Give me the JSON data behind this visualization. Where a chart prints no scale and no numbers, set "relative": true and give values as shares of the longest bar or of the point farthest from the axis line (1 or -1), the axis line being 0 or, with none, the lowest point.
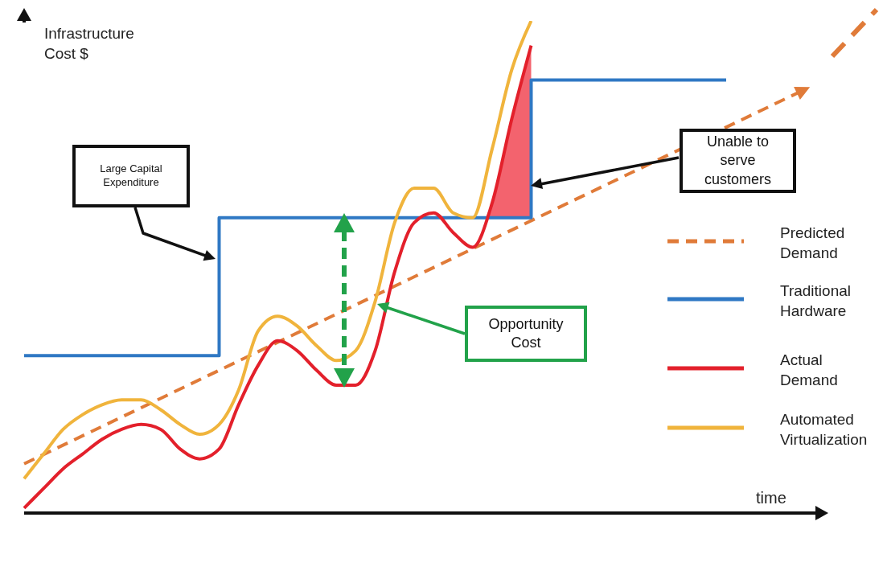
{
  "chart_data": {
    "type": "line",
    "relative": true,
    "xlabel": "time",
    "ylabel": "Infrastructure Cost $",
    "legend": "right",
    "categories": [
      null,
      null,
      null,
      null,
      null,
      null,
      null,
      null,
      null,
      null,
      null,
      null,
      null,
      null,
      null,
      null,
      null,
      null,
      null,
      null,
      null,
      null,
      null,
      null,
      null,
      null,
      null,
      null,
      null,
      null,
      null,
      null,
      null,
      null,
      null,
      null,
      null,
      null,
      null,
      null,
      null
    ],
    "series": [
      {
        "name": "Predicted Demand",
        "line_style": "dashed",
        "color": "#e07b39",
        "values": [
          0.1,
          null,
          null,
          null,
          null,
          null,
          null,
          null,
          null,
          null,
          null,
          null,
          null,
          null,
          null,
          null,
          null,
          null,
          null,
          null,
          null,
          null,
          null,
          null,
          null,
          null,
          null,
          null,
          null,
          null,
          null,
          null,
          null,
          null,
          null,
          null,
          null,
          null,
          null,
          null,
          0.86
        ]
      },
      {
        "name": "Traditional Hardware",
        "type": "step",
        "line_style": "solid",
        "color": "#2f78c4",
        "values": [
          0.32,
          null,
          null,
          null,
          null,
          null,
          null,
          null,
          null,
          null,
          0.6,
          null,
          null,
          null,
          null,
          null,
          null,
          null,
          null,
          null,
          null,
          null,
          null,
          null,
          null,
          null,
          0.88,
          null,
          null,
          null,
          null,
          null,
          null,
          null,
          null,
          null,
          0.88,
          null,
          null,
          null,
          null
        ]
      },
      {
        "name": "Actual Demand",
        "line_style": "solid",
        "color": "#e3202b",
        "values": [
          0.01,
          0.05,
          0.09,
          0.12,
          0.15,
          0.17,
          0.18,
          0.17,
          0.13,
          0.11,
          0.13,
          0.22,
          0.3,
          0.35,
          0.33,
          0.29,
          0.26,
          0.26,
          0.33,
          0.49,
          0.59,
          0.61,
          0.57,
          0.54,
          0.63,
          0.8,
          0.95,
          null,
          null,
          null,
          null,
          null,
          null,
          null,
          null,
          null,
          null,
          null,
          null,
          null,
          null
        ]
      },
      {
        "name": "Automated Virtualization",
        "line_style": "solid",
        "color": "#f0b43c",
        "values": [
          0.07,
          0.12,
          0.17,
          0.2,
          0.22,
          0.23,
          0.23,
          0.21,
          0.18,
          0.16,
          0.18,
          0.25,
          0.37,
          0.4,
          0.38,
          0.34,
          0.31,
          0.33,
          0.43,
          0.59,
          0.66,
          0.66,
          0.61,
          0.6,
          0.74,
          0.9,
          1.0,
          null,
          null,
          null,
          null,
          null,
          null,
          null,
          null,
          null,
          null,
          null,
          null,
          null,
          null
        ]
      }
    ],
    "annotations": [
      "Large Capital Expenditure",
      "Unable to serve customers",
      "Opportunity Cost"
    ]
  }
}
